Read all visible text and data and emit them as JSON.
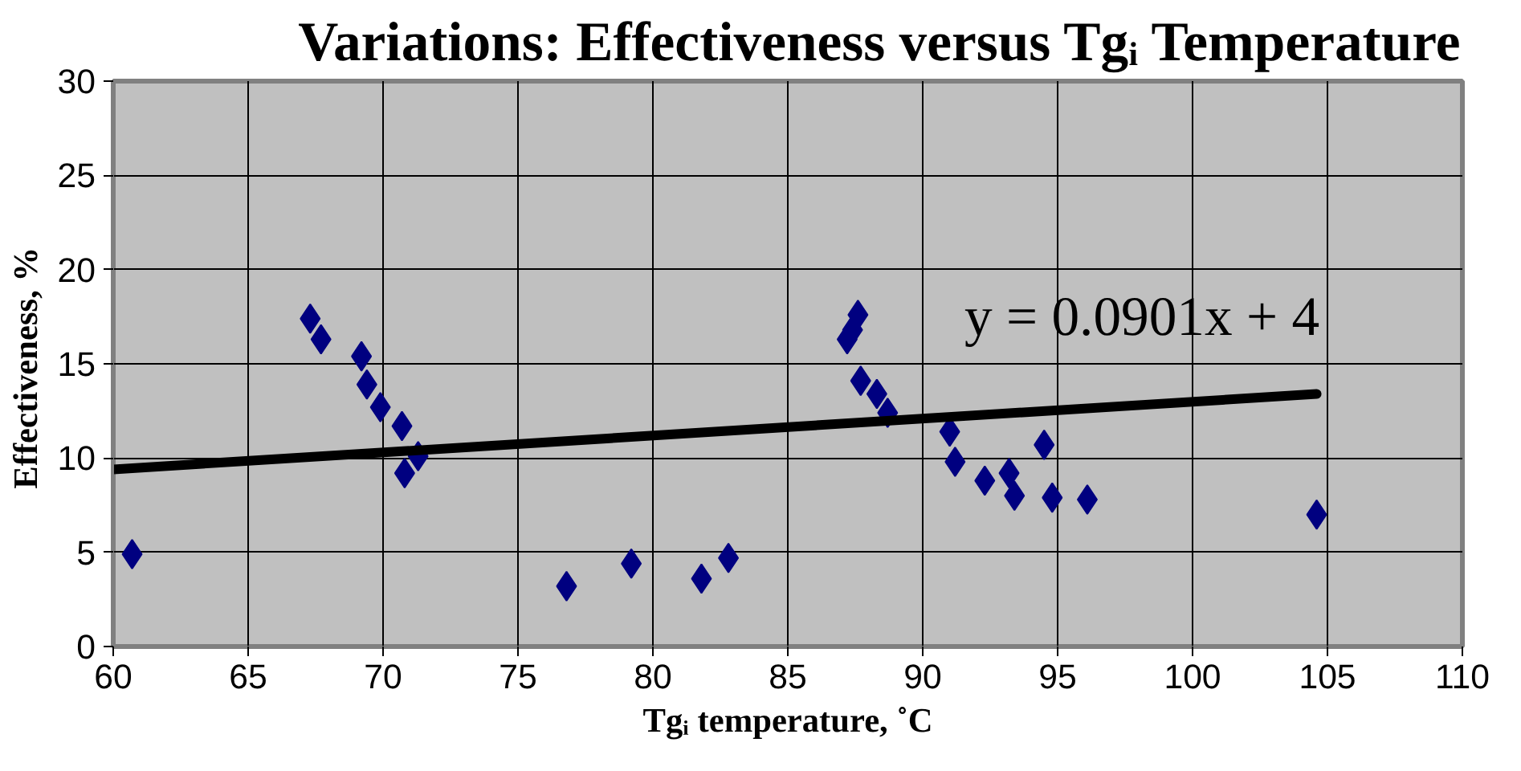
{
  "chart_data": {
    "type": "scatter",
    "title": "Variations: Effectiveness versus Tgᵢ Temperature",
    "xlabel": "Tgᵢ temperature, ˚C",
    "ylabel": "Effectiveness,  %",
    "xlim": [
      60,
      110
    ],
    "xticks": [
      60,
      65,
      70,
      75,
      80,
      85,
      90,
      95,
      100,
      105,
      110
    ],
    "ylim": [
      0,
      30
    ],
    "yticks": [
      0,
      5,
      10,
      15,
      20,
      25,
      30
    ],
    "grid": true,
    "annotations": [
      "y = 0.0901x + 4"
    ],
    "series": [
      {
        "marker": "diamond",
        "color": "#000080",
        "x": [
          60.7,
          67.3,
          67.7,
          69.2,
          69.4,
          69.9,
          70.7,
          70.8,
          71.3,
          76.8,
          79.2,
          81.8,
          82.8,
          87.6,
          87.2,
          87.4,
          87.7,
          88.3,
          88.7,
          91.0,
          91.2,
          92.3,
          93.2,
          93.4,
          94.5,
          94.8,
          96.1,
          104.6
        ],
        "values": [
          4.9,
          17.4,
          16.3,
          15.4,
          13.9,
          12.7,
          11.7,
          9.2,
          10.1,
          3.2,
          4.4,
          3.6,
          4.7,
          17.6,
          16.3,
          16.8,
          14.1,
          13.4,
          12.4,
          11.4,
          9.8,
          8.8,
          9.2,
          8.0,
          10.7,
          7.9,
          7.8,
          7.0
        ]
      },
      {
        "type": "line",
        "color": "#000000",
        "x": [
          60,
          104.6
        ],
        "values": [
          9.4,
          13.4
        ]
      }
    ]
  }
}
